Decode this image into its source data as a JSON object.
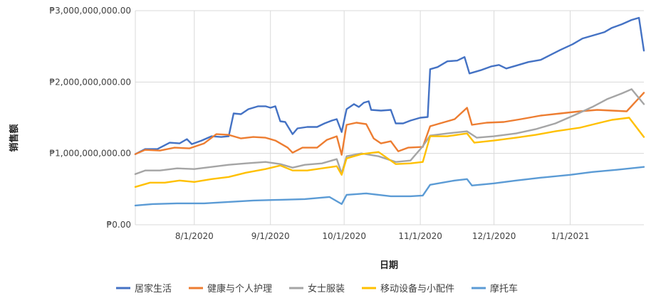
{
  "chart_data": {
    "type": "line",
    "title": "",
    "xlabel": "日期",
    "ylabel": "销售额",
    "ylim": [
      0,
      3000000000
    ],
    "yticks": [
      {
        "value": 0,
        "label": "₱0.00"
      },
      {
        "value": 1000000000,
        "label": "₱1,000,000,000.00"
      },
      {
        "value": 2000000000,
        "label": "₱2,000,000,000.00"
      },
      {
        "value": 3000000000,
        "label": "₱3,000,000,000.00"
      }
    ],
    "xlim": [
      "2020-07-08",
      "2021-01-31"
    ],
    "xticks": [
      {
        "value": "2020-08-01",
        "label": "8/1/2020"
      },
      {
        "value": "2020-09-01",
        "label": "9/1/2020"
      },
      {
        "value": "2020-10-01",
        "label": "10/1/2020"
      },
      {
        "value": "2020-11-01",
        "label": "11/1/2020"
      },
      {
        "value": "2020-12-01",
        "label": "12/1/2020"
      },
      {
        "value": "2021-01-01",
        "label": "1/1/2021"
      }
    ],
    "grid": true,
    "legend": "bottom",
    "series": [
      {
        "name": "居家生活",
        "color": "#4472C4",
        "points": [
          [
            "2020-07-08",
            990000000
          ],
          [
            "2020-07-12",
            1060000000
          ],
          [
            "2020-07-17",
            1060000000
          ],
          [
            "2020-07-22",
            1150000000
          ],
          [
            "2020-07-26",
            1140000000
          ],
          [
            "2020-07-29",
            1200000000
          ],
          [
            "2020-07-31",
            1130000000
          ],
          [
            "2020-08-04",
            1180000000
          ],
          [
            "2020-08-08",
            1240000000
          ],
          [
            "2020-08-12",
            1230000000
          ],
          [
            "2020-08-15",
            1240000000
          ],
          [
            "2020-08-17",
            1560000000
          ],
          [
            "2020-08-20",
            1550000000
          ],
          [
            "2020-08-23",
            1620000000
          ],
          [
            "2020-08-27",
            1660000000
          ],
          [
            "2020-08-30",
            1660000000
          ],
          [
            "2020-09-01",
            1640000000
          ],
          [
            "2020-09-03",
            1660000000
          ],
          [
            "2020-09-05",
            1450000000
          ],
          [
            "2020-09-07",
            1440000000
          ],
          [
            "2020-09-10",
            1270000000
          ],
          [
            "2020-09-12",
            1350000000
          ],
          [
            "2020-09-16",
            1370000000
          ],
          [
            "2020-09-20",
            1370000000
          ],
          [
            "2020-09-23",
            1420000000
          ],
          [
            "2020-09-26",
            1460000000
          ],
          [
            "2020-09-28",
            1480000000
          ],
          [
            "2020-09-30",
            1300000000
          ],
          [
            "2020-10-02",
            1620000000
          ],
          [
            "2020-10-05",
            1690000000
          ],
          [
            "2020-10-07",
            1650000000
          ],
          [
            "2020-10-09",
            1710000000
          ],
          [
            "2020-10-11",
            1730000000
          ],
          [
            "2020-10-12",
            1610000000
          ],
          [
            "2020-10-16",
            1600000000
          ],
          [
            "2020-10-20",
            1610000000
          ],
          [
            "2020-10-22",
            1420000000
          ],
          [
            "2020-10-25",
            1420000000
          ],
          [
            "2020-10-28",
            1460000000
          ],
          [
            "2020-11-01",
            1500000000
          ],
          [
            "2020-11-04",
            1510000000
          ],
          [
            "2020-11-05",
            2180000000
          ],
          [
            "2020-11-08",
            2210000000
          ],
          [
            "2020-11-12",
            2290000000
          ],
          [
            "2020-11-16",
            2300000000
          ],
          [
            "2020-11-19",
            2350000000
          ],
          [
            "2020-11-21",
            2120000000
          ],
          [
            "2020-11-26",
            2170000000
          ],
          [
            "2020-11-30",
            2220000000
          ],
          [
            "2020-12-03",
            2240000000
          ],
          [
            "2020-12-06",
            2190000000
          ],
          [
            "2020-12-10",
            2230000000
          ],
          [
            "2020-12-15",
            2280000000
          ],
          [
            "2020-12-20",
            2310000000
          ],
          [
            "2020-12-24",
            2380000000
          ],
          [
            "2020-12-28",
            2450000000
          ],
          [
            "2021-01-02",
            2530000000
          ],
          [
            "2021-01-06",
            2610000000
          ],
          [
            "2021-01-10",
            2650000000
          ],
          [
            "2021-01-15",
            2700000000
          ],
          [
            "2021-01-18",
            2760000000
          ],
          [
            "2021-01-22",
            2810000000
          ],
          [
            "2021-01-26",
            2870000000
          ],
          [
            "2021-01-29",
            2900000000
          ],
          [
            "2021-01-31",
            2440000000
          ]
        ]
      },
      {
        "name": "健康与个人护理",
        "color": "#ED7D31",
        "points": [
          [
            "2020-07-08",
            990000000
          ],
          [
            "2020-07-12",
            1050000000
          ],
          [
            "2020-07-18",
            1040000000
          ],
          [
            "2020-07-24",
            1080000000
          ],
          [
            "2020-07-30",
            1070000000
          ],
          [
            "2020-08-05",
            1140000000
          ],
          [
            "2020-08-10",
            1270000000
          ],
          [
            "2020-08-15",
            1260000000
          ],
          [
            "2020-08-20",
            1210000000
          ],
          [
            "2020-08-25",
            1230000000
          ],
          [
            "2020-08-30",
            1220000000
          ],
          [
            "2020-09-03",
            1180000000
          ],
          [
            "2020-09-08",
            1080000000
          ],
          [
            "2020-09-10",
            1010000000
          ],
          [
            "2020-09-14",
            1080000000
          ],
          [
            "2020-09-20",
            1080000000
          ],
          [
            "2020-09-24",
            1190000000
          ],
          [
            "2020-09-28",
            1240000000
          ],
          [
            "2020-09-30",
            980000000
          ],
          [
            "2020-10-02",
            1400000000
          ],
          [
            "2020-10-06",
            1430000000
          ],
          [
            "2020-10-10",
            1410000000
          ],
          [
            "2020-10-13",
            1210000000
          ],
          [
            "2020-10-16",
            1140000000
          ],
          [
            "2020-10-20",
            1170000000
          ],
          [
            "2020-10-23",
            1030000000
          ],
          [
            "2020-10-27",
            1080000000
          ],
          [
            "2020-11-02",
            1090000000
          ],
          [
            "2020-11-05",
            1380000000
          ],
          [
            "2020-11-10",
            1430000000
          ],
          [
            "2020-11-15",
            1480000000
          ],
          [
            "2020-11-20",
            1640000000
          ],
          [
            "2020-11-22",
            1400000000
          ],
          [
            "2020-11-28",
            1430000000
          ],
          [
            "2020-12-05",
            1440000000
          ],
          [
            "2020-12-12",
            1480000000
          ],
          [
            "2020-12-20",
            1530000000
          ],
          [
            "2020-12-28",
            1560000000
          ],
          [
            "2021-01-05",
            1590000000
          ],
          [
            "2021-01-12",
            1610000000
          ],
          [
            "2021-01-18",
            1600000000
          ],
          [
            "2021-01-24",
            1590000000
          ],
          [
            "2021-01-31",
            1850000000
          ]
        ]
      },
      {
        "name": "女士服装",
        "color": "#A5A5A5",
        "points": [
          [
            "2020-07-08",
            710000000
          ],
          [
            "2020-07-12",
            760000000
          ],
          [
            "2020-07-18",
            760000000
          ],
          [
            "2020-07-25",
            790000000
          ],
          [
            "2020-08-01",
            780000000
          ],
          [
            "2020-08-08",
            810000000
          ],
          [
            "2020-08-15",
            840000000
          ],
          [
            "2020-08-22",
            860000000
          ],
          [
            "2020-08-30",
            880000000
          ],
          [
            "2020-09-05",
            850000000
          ],
          [
            "2020-09-10",
            800000000
          ],
          [
            "2020-09-15",
            840000000
          ],
          [
            "2020-09-22",
            860000000
          ],
          [
            "2020-09-28",
            920000000
          ],
          [
            "2020-09-30",
            720000000
          ],
          [
            "2020-10-02",
            960000000
          ],
          [
            "2020-10-08",
            1000000000
          ],
          [
            "2020-10-15",
            960000000
          ],
          [
            "2020-10-22",
            880000000
          ],
          [
            "2020-10-28",
            900000000
          ],
          [
            "2020-11-02",
            1100000000
          ],
          [
            "2020-11-05",
            1250000000
          ],
          [
            "2020-11-12",
            1280000000
          ],
          [
            "2020-11-20",
            1310000000
          ],
          [
            "2020-11-24",
            1220000000
          ],
          [
            "2020-12-01",
            1240000000
          ],
          [
            "2020-12-10",
            1280000000
          ],
          [
            "2020-12-18",
            1340000000
          ],
          [
            "2020-12-26",
            1420000000
          ],
          [
            "2021-01-03",
            1540000000
          ],
          [
            "2021-01-10",
            1650000000
          ],
          [
            "2021-01-16",
            1760000000
          ],
          [
            "2021-01-22",
            1840000000
          ],
          [
            "2021-01-26",
            1900000000
          ],
          [
            "2021-01-31",
            1690000000
          ]
        ]
      },
      {
        "name": "移动设备与小配件",
        "color": "#FFC000",
        "points": [
          [
            "2020-07-08",
            530000000
          ],
          [
            "2020-07-14",
            590000000
          ],
          [
            "2020-07-20",
            590000000
          ],
          [
            "2020-07-26",
            620000000
          ],
          [
            "2020-08-01",
            600000000
          ],
          [
            "2020-08-08",
            640000000
          ],
          [
            "2020-08-15",
            670000000
          ],
          [
            "2020-08-22",
            730000000
          ],
          [
            "2020-08-30",
            780000000
          ],
          [
            "2020-09-05",
            830000000
          ],
          [
            "2020-09-10",
            760000000
          ],
          [
            "2020-09-16",
            760000000
          ],
          [
            "2020-09-22",
            790000000
          ],
          [
            "2020-09-28",
            820000000
          ],
          [
            "2020-09-30",
            700000000
          ],
          [
            "2020-10-02",
            930000000
          ],
          [
            "2020-10-08",
            990000000
          ],
          [
            "2020-10-15",
            1020000000
          ],
          [
            "2020-10-22",
            850000000
          ],
          [
            "2020-10-28",
            860000000
          ],
          [
            "2020-11-02",
            880000000
          ],
          [
            "2020-11-05",
            1240000000
          ],
          [
            "2020-11-12",
            1240000000
          ],
          [
            "2020-11-20",
            1280000000
          ],
          [
            "2020-11-23",
            1150000000
          ],
          [
            "2020-12-01",
            1180000000
          ],
          [
            "2020-12-10",
            1220000000
          ],
          [
            "2020-12-18",
            1260000000
          ],
          [
            "2020-12-26",
            1310000000
          ],
          [
            "2021-01-05",
            1360000000
          ],
          [
            "2021-01-12",
            1420000000
          ],
          [
            "2021-01-18",
            1470000000
          ],
          [
            "2021-01-25",
            1500000000
          ],
          [
            "2021-01-31",
            1230000000
          ]
        ]
      },
      {
        "name": "摩托车",
        "color": "#5B9BD5",
        "points": [
          [
            "2020-07-08",
            270000000
          ],
          [
            "2020-07-15",
            290000000
          ],
          [
            "2020-07-25",
            300000000
          ],
          [
            "2020-08-05",
            300000000
          ],
          [
            "2020-08-15",
            320000000
          ],
          [
            "2020-08-25",
            340000000
          ],
          [
            "2020-09-05",
            350000000
          ],
          [
            "2020-09-15",
            360000000
          ],
          [
            "2020-09-25",
            390000000
          ],
          [
            "2020-09-30",
            290000000
          ],
          [
            "2020-10-02",
            420000000
          ],
          [
            "2020-10-10",
            440000000
          ],
          [
            "2020-10-20",
            400000000
          ],
          [
            "2020-10-28",
            400000000
          ],
          [
            "2020-11-02",
            410000000
          ],
          [
            "2020-11-05",
            560000000
          ],
          [
            "2020-11-15",
            620000000
          ],
          [
            "2020-11-20",
            640000000
          ],
          [
            "2020-11-22",
            550000000
          ],
          [
            "2020-12-01",
            580000000
          ],
          [
            "2020-12-10",
            620000000
          ],
          [
            "2020-12-20",
            660000000
          ],
          [
            "2021-01-01",
            700000000
          ],
          [
            "2021-01-10",
            740000000
          ],
          [
            "2021-01-20",
            770000000
          ],
          [
            "2021-01-31",
            810000000
          ]
        ]
      }
    ]
  }
}
